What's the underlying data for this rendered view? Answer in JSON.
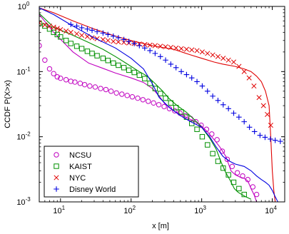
{
  "chart_data": {
    "type": "line",
    "xlabel": "x [m]",
    "ylabel": "CCDF P(X>x)",
    "xscale": "log",
    "yscale": "log",
    "xlim": [
      5,
      15000
    ],
    "ylim": [
      0.001,
      1
    ],
    "xticks": [
      {
        "value": 10,
        "base": "10",
        "exp": "1"
      },
      {
        "value": 100,
        "base": "10",
        "exp": "2"
      },
      {
        "value": 1000,
        "base": "10",
        "exp": "3"
      },
      {
        "value": 10000,
        "base": "10",
        "exp": "4"
      }
    ],
    "yticks": [
      {
        "value": 1,
        "base": "10",
        "exp": "0"
      },
      {
        "value": 0.1,
        "base": "10",
        "exp": "-1"
      },
      {
        "value": 0.01,
        "base": "10",
        "exp": "-2"
      },
      {
        "value": 0.001,
        "base": "10",
        "exp": "-3"
      }
    ],
    "grid": false,
    "legend_position": "bottom-left",
    "series": [
      {
        "name": "NCSU",
        "color": "#c000c0",
        "marker": "circle",
        "line": [
          [
            5,
            0.75
          ],
          [
            8,
            0.4
          ],
          [
            15,
            0.2
          ],
          [
            25,
            0.135
          ],
          [
            40,
            0.112
          ],
          [
            60,
            0.095
          ],
          [
            100,
            0.08
          ],
          [
            150,
            0.068
          ],
          [
            200,
            0.055
          ],
          [
            250,
            0.042
          ],
          [
            300,
            0.032
          ],
          [
            400,
            0.025
          ],
          [
            600,
            0.02
          ],
          [
            900,
            0.016
          ],
          [
            1200,
            0.012
          ],
          [
            1500,
            0.009
          ],
          [
            1800,
            0.007
          ],
          [
            2200,
            0.005
          ],
          [
            2600,
            0.003
          ],
          [
            3000,
            0.0026
          ],
          [
            3500,
            0.0024
          ],
          [
            4000,
            0.0023
          ],
          [
            4500,
            0.0021
          ],
          [
            5000,
            0.0016
          ],
          [
            5500,
            0.0013
          ],
          [
            6000,
            0.001
          ]
        ],
        "points": [
          [
            5,
            0.25
          ],
          [
            6,
            0.15
          ],
          [
            7,
            0.11
          ],
          [
            8,
            0.093
          ],
          [
            9,
            0.083
          ],
          [
            10,
            0.079
          ],
          [
            12,
            0.075
          ],
          [
            14,
            0.071
          ],
          [
            16,
            0.069
          ],
          [
            19,
            0.066
          ],
          [
            22,
            0.063
          ],
          [
            26,
            0.06
          ],
          [
            31,
            0.058
          ],
          [
            37,
            0.055
          ],
          [
            44,
            0.053
          ],
          [
            52,
            0.05
          ],
          [
            62,
            0.047
          ],
          [
            74,
            0.045
          ],
          [
            88,
            0.043
          ],
          [
            104,
            0.041
          ],
          [
            124,
            0.039
          ],
          [
            147,
            0.037
          ],
          [
            175,
            0.035
          ],
          [
            208,
            0.033
          ],
          [
            247,
            0.031
          ],
          [
            294,
            0.029
          ],
          [
            349,
            0.027
          ],
          [
            415,
            0.025
          ],
          [
            493,
            0.023
          ],
          [
            586,
            0.021
          ],
          [
            697,
            0.019
          ],
          [
            828,
            0.017
          ],
          [
            984,
            0.015
          ],
          [
            1170,
            0.013
          ],
          [
            1390,
            0.011
          ],
          [
            1650,
            0.009
          ],
          [
            1960,
            0.006
          ],
          [
            2300,
            0.0045
          ],
          [
            2700,
            0.0035
          ],
          [
            3200,
            0.0028
          ],
          [
            3800,
            0.0025
          ],
          [
            4500,
            0.0022
          ],
          [
            5300,
            0.0017
          ],
          [
            6000,
            0.0013
          ]
        ]
      },
      {
        "name": "KAIST",
        "color": "#009000",
        "marker": "square",
        "line": [
          [
            5,
            0.78
          ],
          [
            8,
            0.48
          ],
          [
            15,
            0.36
          ],
          [
            25,
            0.28
          ],
          [
            40,
            0.22
          ],
          [
            60,
            0.17
          ],
          [
            80,
            0.14
          ],
          [
            100,
            0.12
          ],
          [
            130,
            0.1
          ],
          [
            170,
            0.085
          ],
          [
            220,
            0.065
          ],
          [
            280,
            0.05
          ],
          [
            350,
            0.038
          ],
          [
            450,
            0.03
          ],
          [
            600,
            0.024
          ],
          [
            800,
            0.018
          ],
          [
            1000,
            0.014
          ],
          [
            1300,
            0.0095
          ],
          [
            1600,
            0.0065
          ],
          [
            1900,
            0.004
          ],
          [
            2200,
            0.0028
          ],
          [
            2500,
            0.0022
          ],
          [
            2900,
            0.0016
          ],
          [
            3300,
            0.0014
          ],
          [
            3700,
            0.0013
          ],
          [
            4200,
            0.0012
          ],
          [
            5000,
            0.0011
          ]
        ],
        "points": [
          [
            5,
            0.55
          ],
          [
            6,
            0.5
          ],
          [
            7,
            0.45
          ],
          [
            8,
            0.4
          ],
          [
            9,
            0.37
          ],
          [
            10,
            0.34
          ],
          [
            12,
            0.3
          ],
          [
            14,
            0.27
          ],
          [
            17,
            0.245
          ],
          [
            20,
            0.225
          ],
          [
            24,
            0.205
          ],
          [
            28,
            0.19
          ],
          [
            33,
            0.175
          ],
          [
            40,
            0.16
          ],
          [
            47,
            0.148
          ],
          [
            56,
            0.135
          ],
          [
            66,
            0.125
          ],
          [
            79,
            0.115
          ],
          [
            93,
            0.105
          ],
          [
            111,
            0.097
          ],
          [
            131,
            0.088
          ],
          [
            156,
            0.078
          ],
          [
            185,
            0.066
          ],
          [
            219,
            0.055
          ],
          [
            260,
            0.046
          ],
          [
            308,
            0.039
          ],
          [
            365,
            0.033
          ],
          [
            433,
            0.028
          ],
          [
            514,
            0.024
          ],
          [
            610,
            0.02
          ],
          [
            723,
            0.016
          ],
          [
            858,
            0.013
          ],
          [
            1018,
            0.01
          ],
          [
            1208,
            0.0075
          ],
          [
            1433,
            0.0055
          ],
          [
            1700,
            0.0042
          ],
          [
            2017,
            0.0033
          ],
          [
            2393,
            0.0026
          ],
          [
            2840,
            0.002
          ],
          [
            3370,
            0.0016
          ],
          [
            4000,
            0.0013
          ]
        ]
      },
      {
        "name": "NYC",
        "color": "#e00000",
        "marker": "x",
        "line": [
          [
            5,
            0.95
          ],
          [
            8,
            0.8
          ],
          [
            15,
            0.6
          ],
          [
            30,
            0.45
          ],
          [
            60,
            0.35
          ],
          [
            100,
            0.3
          ],
          [
            200,
            0.25
          ],
          [
            400,
            0.22
          ],
          [
            700,
            0.18
          ],
          [
            1000,
            0.16
          ],
          [
            1500,
            0.14
          ],
          [
            2000,
            0.13
          ],
          [
            3000,
            0.12
          ],
          [
            4000,
            0.11
          ],
          [
            5000,
            0.1
          ],
          [
            6000,
            0.085
          ],
          [
            7000,
            0.07
          ],
          [
            8000,
            0.05
          ],
          [
            9000,
            0.03
          ],
          [
            9500,
            0.01
          ],
          [
            10000,
            0.003
          ],
          [
            10500,
            0.0015
          ],
          [
            11000,
            0.001
          ]
        ],
        "points": [
          [
            5,
            0.56
          ],
          [
            6,
            0.52
          ],
          [
            7,
            0.5
          ],
          [
            8,
            0.48
          ],
          [
            9,
            0.46
          ],
          [
            10,
            0.44
          ],
          [
            12,
            0.42
          ],
          [
            14,
            0.4
          ],
          [
            17,
            0.38
          ],
          [
            20,
            0.36
          ],
          [
            24,
            0.345
          ],
          [
            28,
            0.33
          ],
          [
            33,
            0.32
          ],
          [
            40,
            0.31
          ],
          [
            47,
            0.3
          ],
          [
            56,
            0.29
          ],
          [
            66,
            0.285
          ],
          [
            79,
            0.28
          ],
          [
            93,
            0.275
          ],
          [
            111,
            0.27
          ],
          [
            131,
            0.265
          ],
          [
            156,
            0.26
          ],
          [
            185,
            0.255
          ],
          [
            219,
            0.25
          ],
          [
            260,
            0.245
          ],
          [
            308,
            0.24
          ],
          [
            365,
            0.235
          ],
          [
            433,
            0.23
          ],
          [
            514,
            0.225
          ],
          [
            610,
            0.22
          ],
          [
            723,
            0.215
          ],
          [
            858,
            0.21
          ],
          [
            1018,
            0.2
          ],
          [
            1208,
            0.19
          ],
          [
            1433,
            0.18
          ],
          [
            1700,
            0.17
          ],
          [
            2017,
            0.16
          ],
          [
            2393,
            0.15
          ],
          [
            2840,
            0.14
          ],
          [
            3370,
            0.12
          ],
          [
            4000,
            0.1
          ],
          [
            4700,
            0.08
          ],
          [
            5500,
            0.06
          ],
          [
            6500,
            0.04
          ],
          [
            7500,
            0.03
          ],
          [
            8500,
            0.022
          ],
          [
            9500,
            0.015
          ]
        ]
      },
      {
        "name": "Disney World",
        "color": "#0000e0",
        "marker": "plus",
        "line": [
          [
            5,
            0.95
          ],
          [
            8,
            0.75
          ],
          [
            15,
            0.5
          ],
          [
            30,
            0.33
          ],
          [
            60,
            0.23
          ],
          [
            100,
            0.16
          ],
          [
            150,
            0.11
          ],
          [
            200,
            0.065
          ],
          [
            250,
            0.04
          ],
          [
            350,
            0.028
          ],
          [
            500,
            0.021
          ],
          [
            700,
            0.017
          ],
          [
            1000,
            0.014
          ],
          [
            1300,
            0.01
          ],
          [
            1600,
            0.007
          ],
          [
            2000,
            0.005
          ],
          [
            2500,
            0.0042
          ],
          [
            3000,
            0.0038
          ],
          [
            4000,
            0.0035
          ],
          [
            5000,
            0.003
          ],
          [
            6000,
            0.0025
          ],
          [
            7000,
            0.0022
          ],
          [
            8000,
            0.002
          ],
          [
            9000,
            0.0018
          ],
          [
            10000,
            0.0015
          ],
          [
            11000,
            0.0012
          ],
          [
            12000,
            0.001
          ]
        ],
        "points": [
          [
            14,
            0.53
          ],
          [
            17,
            0.5
          ],
          [
            20,
            0.47
          ],
          [
            24,
            0.45
          ],
          [
            28,
            0.43
          ],
          [
            33,
            0.41
          ],
          [
            40,
            0.39
          ],
          [
            47,
            0.37
          ],
          [
            56,
            0.35
          ],
          [
            66,
            0.33
          ],
          [
            79,
            0.31
          ],
          [
            93,
            0.29
          ],
          [
            111,
            0.27
          ],
          [
            131,
            0.25
          ],
          [
            156,
            0.23
          ],
          [
            185,
            0.21
          ],
          [
            219,
            0.19
          ],
          [
            260,
            0.17
          ],
          [
            308,
            0.15
          ],
          [
            365,
            0.13
          ],
          [
            433,
            0.115
          ],
          [
            514,
            0.1
          ],
          [
            610,
            0.09
          ],
          [
            723,
            0.08
          ],
          [
            858,
            0.07
          ],
          [
            1018,
            0.06
          ],
          [
            1208,
            0.05
          ],
          [
            1433,
            0.042
          ],
          [
            1700,
            0.036
          ],
          [
            2017,
            0.031
          ],
          [
            2393,
            0.027
          ],
          [
            2840,
            0.023
          ],
          [
            3370,
            0.02
          ],
          [
            4000,
            0.017
          ],
          [
            4750,
            0.014
          ],
          [
            5600,
            0.012
          ],
          [
            6700,
            0.0105
          ],
          [
            7900,
            0.0098
          ],
          [
            9400,
            0.0092
          ],
          [
            11000,
            0.0088
          ],
          [
            13000,
            0.0085
          ]
        ]
      }
    ]
  }
}
